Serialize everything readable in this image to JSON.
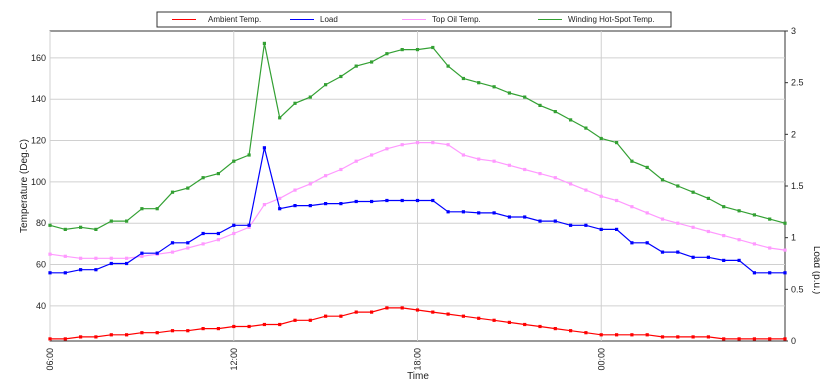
{
  "chart_data": {
    "type": "line",
    "xlabel": "Time",
    "ylabel": "Temperature (Deg.C)",
    "y2label": "Load (p.u.)",
    "x_ticks": [
      "06:00",
      "12:00",
      "18:00",
      "00:00"
    ],
    "x_tick_hours": [
      0,
      6,
      12,
      18
    ],
    "y_ticks": [
      "40",
      "60",
      "80",
      "100",
      "120",
      "140",
      "160"
    ],
    "y_tick_values": [
      40,
      60,
      80,
      100,
      120,
      140,
      160
    ],
    "y2_ticks": [
      "0",
      "0.5",
      "1",
      "1.5",
      "2",
      "2.5",
      "3"
    ],
    "y2_tick_values": [
      0,
      0.5,
      1,
      1.5,
      2,
      2.5,
      3
    ],
    "ylim": [
      23,
      173
    ],
    "y2lim": [
      0,
      3
    ],
    "xlim_hours": [
      0,
      24
    ],
    "grid": true,
    "legend_position": "top",
    "x_hours": [
      0,
      0.5,
      1,
      1.5,
      2,
      2.5,
      3,
      3.5,
      4,
      4.5,
      5,
      5.5,
      6,
      6.5,
      7,
      7.5,
      8,
      8.5,
      9,
      9.5,
      10,
      10.5,
      11,
      11.5,
      12,
      12.5,
      13,
      13.5,
      14,
      14.5,
      15,
      15.5,
      16,
      16.5,
      17,
      17.5,
      18,
      18.5,
      19,
      19.5,
      20,
      20.5,
      21,
      21.5,
      22,
      22.5,
      23,
      23.5,
      24
    ],
    "series": [
      {
        "name": "Ambient Temp.",
        "color": "#ff0000",
        "axis": "left",
        "values": [
          24,
          24,
          25,
          25,
          26,
          26,
          27,
          27,
          28,
          28,
          29,
          29,
          30,
          30,
          31,
          31,
          33,
          33,
          35,
          35,
          37,
          37,
          39,
          39,
          38,
          37,
          36,
          35,
          34,
          33,
          32,
          31,
          30,
          29,
          28,
          27,
          26,
          26,
          26,
          26,
          25,
          25,
          25,
          25,
          24,
          24,
          24,
          24,
          24
        ]
      },
      {
        "name": "Load",
        "color": "#0000ff",
        "axis": "right",
        "values": [
          0.66,
          0.66,
          0.69,
          0.69,
          0.75,
          0.75,
          0.85,
          0.85,
          0.95,
          0.95,
          1.04,
          1.04,
          1.12,
          1.12,
          1.87,
          1.28,
          1.31,
          1.31,
          1.33,
          1.33,
          1.35,
          1.35,
          1.36,
          1.36,
          1.36,
          1.36,
          1.25,
          1.25,
          1.24,
          1.24,
          1.2,
          1.2,
          1.16,
          1.16,
          1.12,
          1.12,
          1.08,
          1.08,
          0.95,
          0.95,
          0.86,
          0.86,
          0.81,
          0.81,
          0.78,
          0.78,
          0.66,
          0.66,
          0.66
        ]
      },
      {
        "name": "Top Oil Temp.",
        "color": "#ff99ff",
        "axis": "left",
        "values": [
          65,
          64,
          63,
          63,
          63,
          63,
          64,
          65,
          66,
          68,
          70,
          72,
          75,
          78,
          89,
          92,
          96,
          99,
          103,
          106,
          110,
          113,
          116,
          118,
          119,
          119,
          118,
          113,
          111,
          110,
          108,
          106,
          104,
          102,
          99,
          96,
          93,
          91,
          88,
          85,
          82,
          80,
          78,
          76,
          74,
          72,
          70,
          68,
          67
        ]
      },
      {
        "name": "Winding Hot-Spot Temp.",
        "color": "#33a033",
        "axis": "left",
        "values": [
          79,
          77,
          78,
          77,
          81,
          81,
          87,
          87,
          95,
          97,
          102,
          104,
          110,
          113,
          167,
          131,
          138,
          141,
          147,
          151,
          156,
          158,
          162,
          164,
          164,
          165,
          156,
          150,
          148,
          146,
          143,
          141,
          137,
          134,
          130,
          126,
          121,
          119,
          110,
          107,
          101,
          98,
          95,
          92,
          88,
          86,
          84,
          82,
          80
        ]
      }
    ]
  }
}
